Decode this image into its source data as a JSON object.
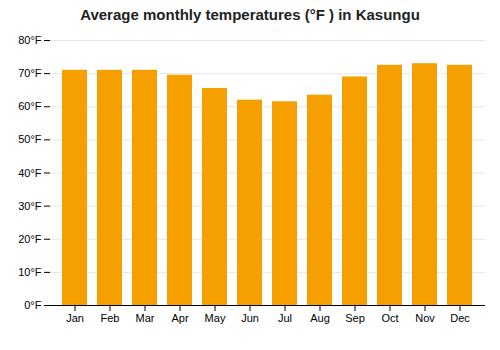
{
  "chart_data": {
    "type": "bar",
    "title": "Average monthly temperatures (°F ) in Kasungu",
    "categories": [
      "Jan",
      "Feb",
      "Mar",
      "Apr",
      "May",
      "Jun",
      "Jul",
      "Aug",
      "Sep",
      "Oct",
      "Nov",
      "Dec"
    ],
    "values": [
      71,
      71,
      71,
      69.5,
      65.5,
      62,
      61.5,
      63.5,
      69,
      72.5,
      73,
      72.5
    ],
    "color": "#F5A000",
    "ylim": [
      0,
      80
    ],
    "yticks": [
      {
        "value": 0,
        "label": "0°F"
      },
      {
        "value": 10,
        "label": "10°F"
      },
      {
        "value": 20,
        "label": "20°F"
      },
      {
        "value": 30,
        "label": "30°F"
      },
      {
        "value": 40,
        "label": "40°F"
      },
      {
        "value": 50,
        "label": "50°F"
      },
      {
        "value": 60,
        "label": "60°F"
      },
      {
        "value": 70,
        "label": "70°F"
      },
      {
        "value": 80,
        "label": "80°F"
      }
    ],
    "grid": true
  }
}
